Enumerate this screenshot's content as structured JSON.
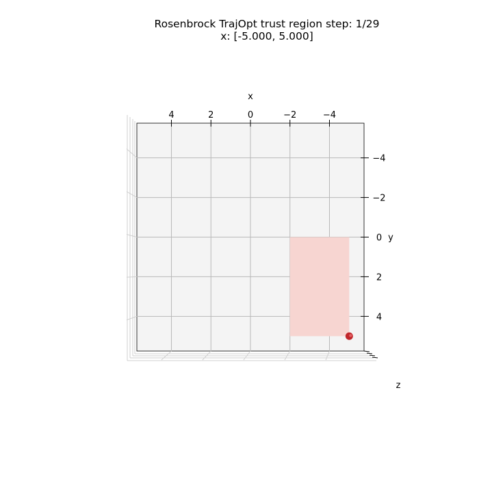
{
  "title_lines": [
    "Rosenbrock TrajOpt trust region step: 1/29",
    "x: [-5.000, 5.000]"
  ],
  "chart_data": {
    "type": "3d-surface-view",
    "view": "top-down",
    "xlabel": "x",
    "ylabel": "y",
    "zlabel": "z",
    "x_ticks": [
      4,
      2,
      0,
      -2,
      -4
    ],
    "y_ticks": [
      -4,
      -2,
      0,
      2,
      4
    ],
    "x_tick_labels": [
      "4",
      "2",
      "0",
      "−2",
      "−4"
    ],
    "y_tick_labels": [
      "−4",
      "−2",
      "0",
      "2",
      "4"
    ],
    "xlim": [
      5.75,
      -5.75
    ],
    "ylim": [
      -5.75,
      5.75
    ],
    "grid": true,
    "trust_region": {
      "x_range": [
        -2,
        -5
      ],
      "y_range": [
        0,
        5
      ],
      "color": "#f7d5d1"
    },
    "current_point": {
      "x": -5,
      "y": 5,
      "color": "#c0262a"
    },
    "pane_color": "#f4f4f4"
  }
}
